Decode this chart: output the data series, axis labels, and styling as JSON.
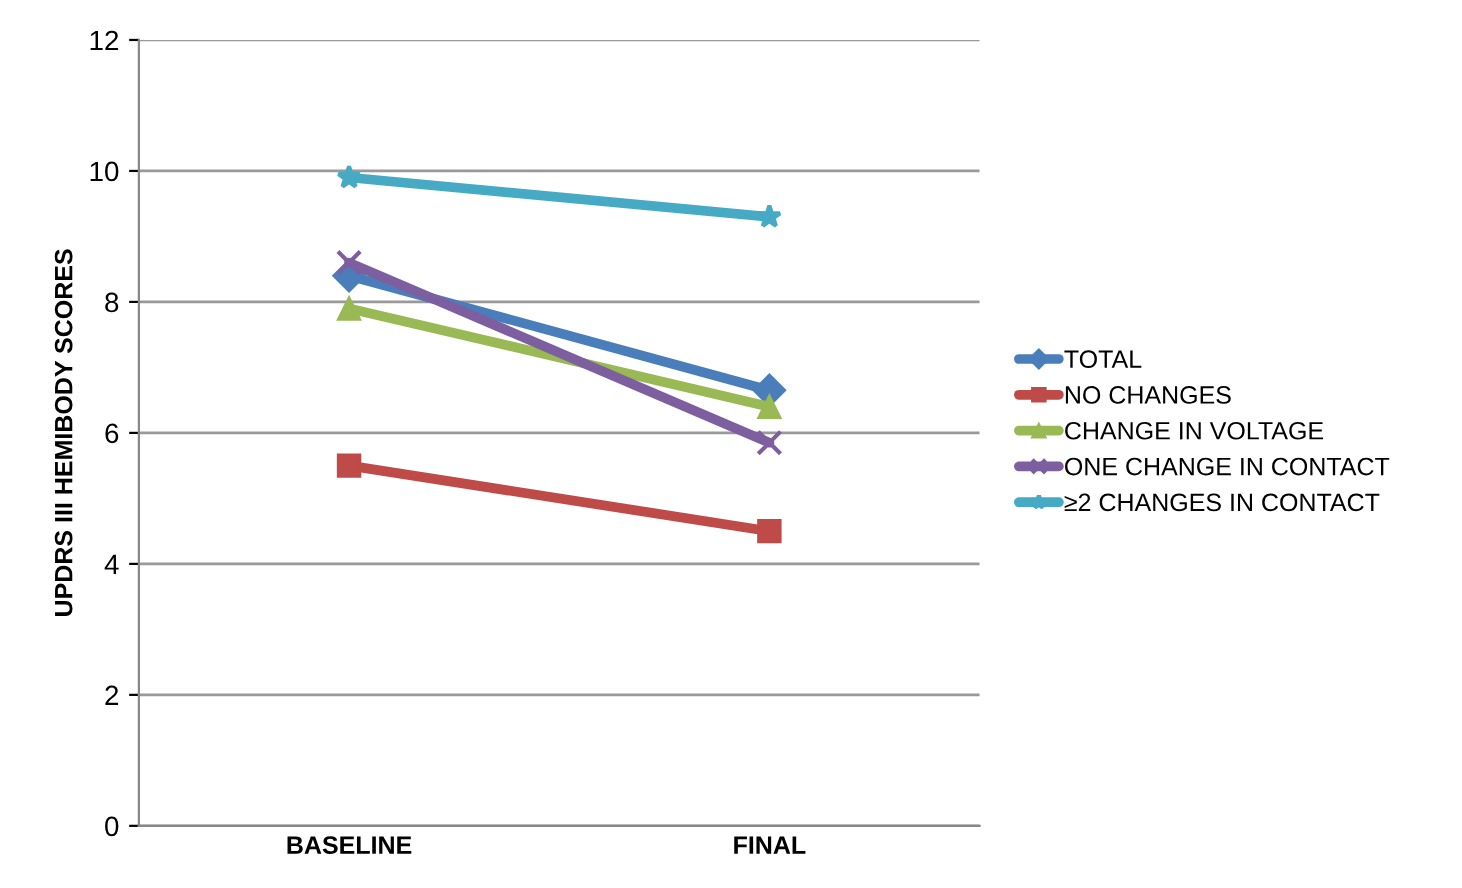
{
  "chart_data": {
    "type": "line",
    "ylabel": "UPDRS III HEMIBODY SCORES",
    "categories": [
      "BASELINE",
      "FINAL"
    ],
    "series": [
      {
        "name": "TOTAL",
        "color": "#4a7ebb",
        "marker": "diamond",
        "values": [
          8.4,
          6.65
        ]
      },
      {
        "name": "NO CHANGES",
        "color": "#be4b48",
        "marker": "square",
        "values": [
          5.5,
          4.5
        ]
      },
      {
        "name": "CHANGE IN VOLTAGE",
        "color": "#98b954",
        "marker": "triangle",
        "values": [
          7.9,
          6.4
        ]
      },
      {
        "name": "ONE CHANGE IN CONTACT",
        "color": "#7d5fa0",
        "marker": "cross",
        "values": [
          8.6,
          5.85
        ]
      },
      {
        "name": "≥2 CHANGES IN CONTACT",
        "color": "#46aac5",
        "marker": "star",
        "values": [
          9.9,
          9.3
        ]
      }
    ],
    "ylim": [
      0,
      12
    ],
    "yticks": [
      0,
      2,
      4,
      6,
      8,
      10,
      12
    ],
    "grid": "y",
    "legend": "right",
    "line_style": "solid"
  }
}
